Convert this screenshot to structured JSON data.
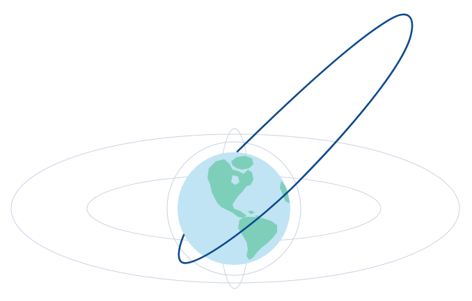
{
  "colors": {
    "background": "#ffffff",
    "ocean": "#c0e4f3",
    "land": "#7ecfba",
    "land_edge": "#6bbfa9",
    "reference_orbit": "#c9d3e3",
    "highlighted_orbit": "#0d4a8c"
  },
  "elements": {
    "earth": "earth-globe",
    "continents": [
      "north-america",
      "south-america",
      "greenland",
      "africa-edge"
    ],
    "reference_orbits": [
      "outer-equatorial-orbit",
      "inner-equatorial-orbit",
      "polar-orbit",
      "earth-halo-orbit"
    ],
    "highlighted_orbit": "highly-elliptical-orbit"
  }
}
